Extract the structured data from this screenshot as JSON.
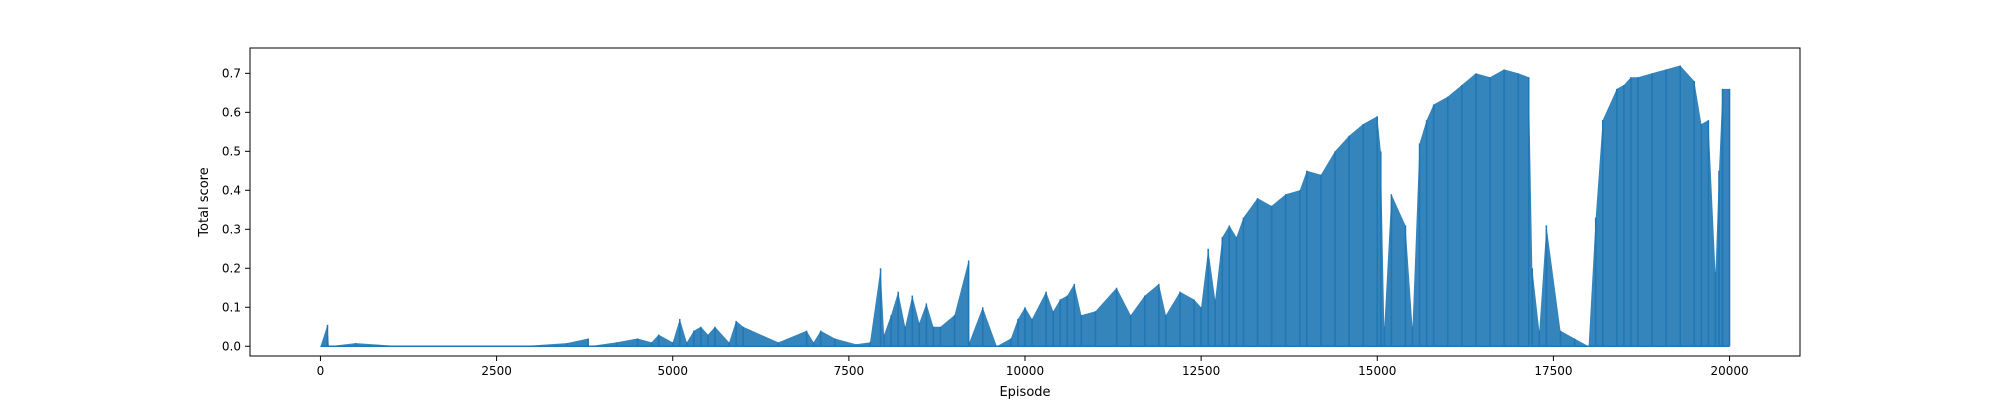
{
  "chart_data": {
    "type": "line",
    "title": "",
    "xlabel": "Episode",
    "ylabel": "Total score",
    "xlim": [
      -1000,
      21000
    ],
    "ylim": [
      -0.025,
      0.765
    ],
    "xticks": [
      0,
      2500,
      5000,
      7500,
      10000,
      12500,
      15000,
      17500,
      20000
    ],
    "xtick_labels": [
      "0",
      "2500",
      "5000",
      "7500",
      "10000",
      "12500",
      "15000",
      "17500",
      "20000"
    ],
    "yticks": [
      0.0,
      0.1,
      0.2,
      0.3,
      0.4,
      0.5,
      0.6,
      0.7
    ],
    "ytick_labels": [
      "0.0",
      "0.1",
      "0.2",
      "0.3",
      "0.4",
      "0.5",
      "0.6",
      "0.7"
    ],
    "grid": false,
    "legend": "none",
    "series": [
      {
        "color": "#1f77b4",
        "x": [
          0,
          100,
          120,
          500,
          1000,
          2000,
          3000,
          3500,
          3800,
          3810,
          4200,
          4500,
          4700,
          4800,
          5000,
          5100,
          5200,
          5300,
          5400,
          5500,
          5600,
          5800,
          5900,
          6000,
          6500,
          6900,
          7000,
          7100,
          7300,
          7600,
          7800,
          7950,
          8000,
          8100,
          8200,
          8300,
          8400,
          8500,
          8600,
          8700,
          8800,
          9000,
          9200,
          9210,
          9400,
          9600,
          9800,
          9900,
          10000,
          10100,
          10300,
          10400,
          10500,
          10600,
          10700,
          10800,
          11000,
          11300,
          11500,
          11700,
          11900,
          12000,
          12200,
          12400,
          12500,
          12600,
          12700,
          12800,
          12900,
          13000,
          13100,
          13300,
          13500,
          13700,
          13900,
          14000,
          14200,
          14400,
          14600,
          14800,
          15000,
          15050,
          15100,
          15200,
          15400,
          15500,
          15600,
          15700,
          15800,
          16000,
          16200,
          16400,
          16600,
          16800,
          17000,
          17150,
          17200,
          17300,
          17400,
          17600,
          17800,
          18000,
          18100,
          18200,
          18400,
          18500,
          18600,
          18700,
          18900,
          19100,
          19300,
          19500,
          19600,
          19700,
          19800,
          19850,
          19900,
          20000
        ],
        "values": [
          0.0,
          0.055,
          0.0,
          0.008,
          0.002,
          0.002,
          0.002,
          0.008,
          0.02,
          0.0,
          0.01,
          0.02,
          0.01,
          0.03,
          0.01,
          0.07,
          0.01,
          0.04,
          0.05,
          0.03,
          0.05,
          0.01,
          0.065,
          0.05,
          0.01,
          0.04,
          0.01,
          0.04,
          0.02,
          0.005,
          0.01,
          0.2,
          0.03,
          0.08,
          0.14,
          0.05,
          0.13,
          0.06,
          0.11,
          0.05,
          0.05,
          0.08,
          0.22,
          0.01,
          0.1,
          0.0,
          0.02,
          0.07,
          0.1,
          0.07,
          0.14,
          0.09,
          0.12,
          0.13,
          0.16,
          0.08,
          0.09,
          0.15,
          0.08,
          0.13,
          0.16,
          0.08,
          0.14,
          0.12,
          0.1,
          0.25,
          0.12,
          0.28,
          0.31,
          0.28,
          0.33,
          0.38,
          0.36,
          0.39,
          0.4,
          0.45,
          0.44,
          0.5,
          0.54,
          0.57,
          0.59,
          0.5,
          0.05,
          0.39,
          0.31,
          0.05,
          0.52,
          0.58,
          0.62,
          0.64,
          0.67,
          0.7,
          0.69,
          0.71,
          0.7,
          0.69,
          0.2,
          0.04,
          0.31,
          0.04,
          0.02,
          0.0,
          0.33,
          0.58,
          0.66,
          0.67,
          0.69,
          0.69,
          0.7,
          0.71,
          0.72,
          0.68,
          0.57,
          0.58,
          0.19,
          0.45,
          0.66,
          0.66
        ]
      }
    ]
  }
}
